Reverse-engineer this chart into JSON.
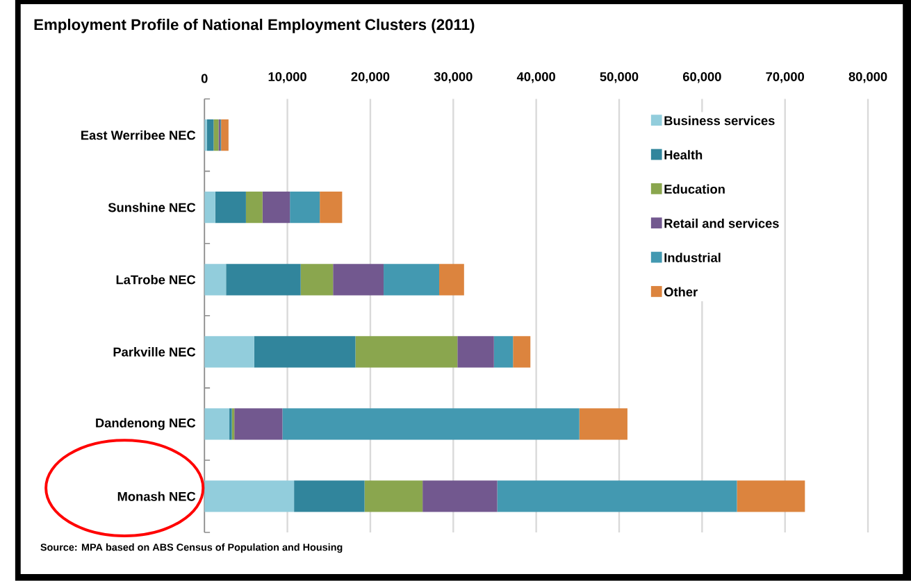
{
  "chart_data": {
    "type": "bar",
    "orientation": "horizontal",
    "stacked": true,
    "title": "Employment Profile of National Employment Clusters (2011)",
    "categories": [
      "East Werribee NEC",
      "Sunshine NEC",
      "LaTrobe NEC",
      "Parkville NEC",
      "Dandenong NEC",
      "Monash NEC"
    ],
    "series": [
      {
        "name": "Business services",
        "color": "#92cddc",
        "values": [
          300,
          1300,
          2600,
          6000,
          3000,
          10800
        ]
      },
      {
        "name": "Health",
        "color": "#31859c",
        "values": [
          800,
          3700,
          9000,
          12200,
          300,
          8500
        ]
      },
      {
        "name": "Education",
        "color": "#8aa64e",
        "values": [
          600,
          2000,
          3900,
          12300,
          300,
          7000
        ]
      },
      {
        "name": "Retail and services",
        "color": "#72588f",
        "values": [
          200,
          3300,
          6100,
          4400,
          5800,
          9000
        ]
      },
      {
        "name": "Industrial",
        "color": "#4399b1",
        "values": [
          100,
          3600,
          6700,
          2300,
          35800,
          28900
        ]
      },
      {
        "name": "Other",
        "color": "#dc843e",
        "values": [
          900,
          2700,
          3000,
          2100,
          5800,
          8200
        ]
      }
    ],
    "xlim": [
      0,
      80000
    ],
    "xticks": [
      {
        "value": 0,
        "label": "0"
      },
      {
        "value": 10000,
        "label": "10,000"
      },
      {
        "value": 20000,
        "label": "20,000"
      },
      {
        "value": 30000,
        "label": "30,000"
      },
      {
        "value": 40000,
        "label": "40,000"
      },
      {
        "value": 50000,
        "label": "50,000"
      },
      {
        "value": 60000,
        "label": "60,000"
      },
      {
        "value": 70000,
        "label": "70,000"
      },
      {
        "value": 80000,
        "label": "80,000"
      }
    ],
    "grid": "x",
    "legend": "top right",
    "annotations": [
      "Source: MPA based on ABS Census of Population and Housing"
    ]
  }
}
